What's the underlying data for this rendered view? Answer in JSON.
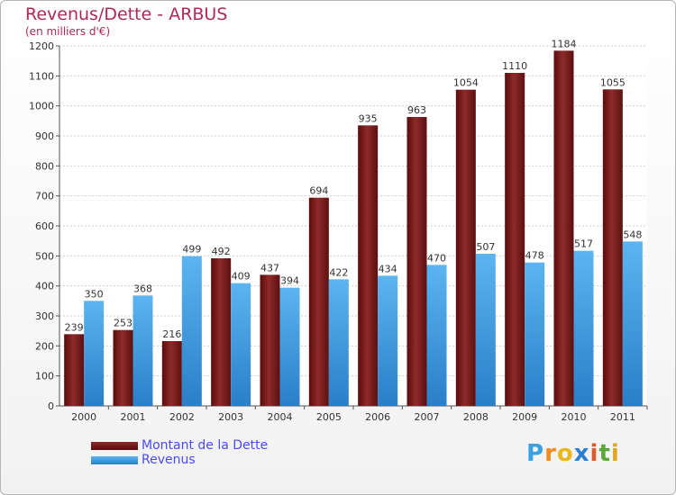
{
  "header": {
    "title": "Revenus/Dette - ARBUS",
    "subtitle": "(en milliers d'€)"
  },
  "legend": {
    "items": [
      {
        "label": "Montant de la Dette",
        "color": "#7a1e1e"
      },
      {
        "label": "Revenus",
        "color": "#3d97e0"
      }
    ]
  },
  "logo": {
    "text": "Proxiti",
    "letters": [
      "P",
      "r",
      "o",
      "x",
      "i",
      "t",
      "i"
    ],
    "letter_colors": [
      "#3aa0e0",
      "#f08a1e",
      "#e8b81e",
      "#2a7fd4",
      "#e05a2a",
      "#5aa83a",
      "#e0a81e"
    ]
  },
  "chart_data": {
    "type": "bar",
    "title": "Revenus/Dette - ARBUS",
    "subtitle": "(en milliers d'€)",
    "xlabel": "",
    "ylabel": "",
    "categories": [
      "2000",
      "2001",
      "2002",
      "2003",
      "2004",
      "2005",
      "2006",
      "2007",
      "2008",
      "2009",
      "2010",
      "2011"
    ],
    "series": [
      {
        "name": "Montant de la Dette",
        "color": "#7a1e1e",
        "values": [
          239,
          253,
          216,
          492,
          437,
          694,
          935,
          963,
          1054,
          1110,
          1184,
          1055
        ]
      },
      {
        "name": "Revenus",
        "color": "#3d97e0",
        "values": [
          350,
          368,
          499,
          409,
          394,
          422,
          434,
          470,
          507,
          478,
          517,
          548
        ]
      }
    ],
    "ylim": [
      0,
      1200
    ],
    "yticks": [
      0,
      100,
      200,
      300,
      400,
      500,
      600,
      700,
      800,
      900,
      1000,
      1100,
      1200
    ],
    "grid": true,
    "legend_position": "bottom-left"
  }
}
